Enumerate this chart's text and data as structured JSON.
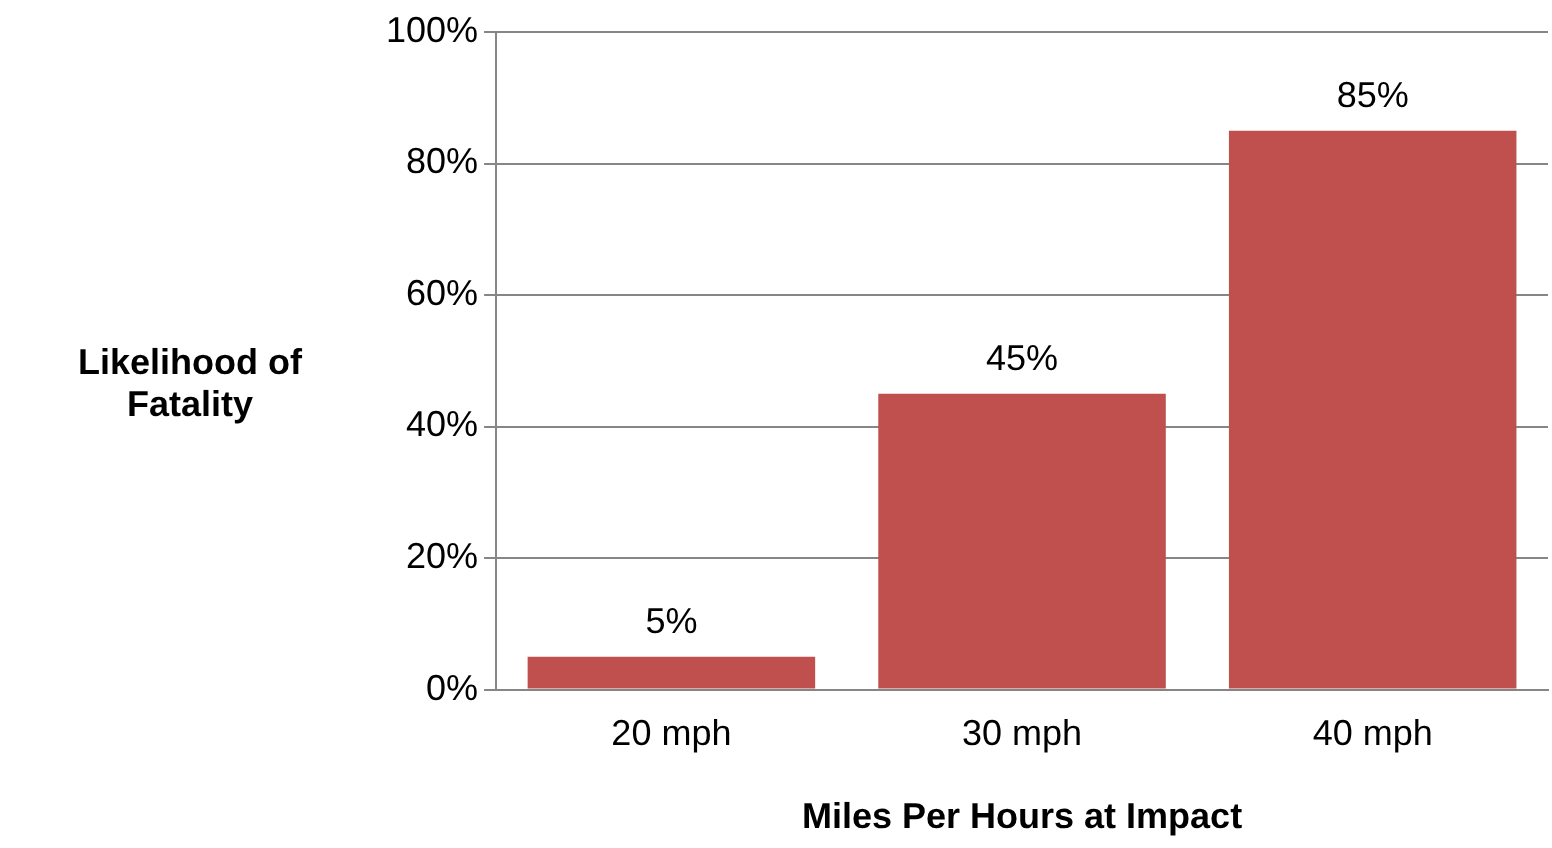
{
  "chart_data": {
    "type": "bar",
    "xlabel": "Miles Per Hours at Impact",
    "ylabel": "Likelihood of Fatality",
    "categories": [
      "20 mph",
      "30 mph",
      "40 mph"
    ],
    "values": [
      5,
      45,
      85
    ],
    "color": "#c0504d",
    "value_labels": [
      "5%",
      "45%",
      "85%"
    ],
    "ylim": [
      0,
      100
    ],
    "yticks": [
      {
        "value": 0,
        "label": "0%"
      },
      {
        "value": 20,
        "label": "20%"
      },
      {
        "value": 40,
        "label": "40%"
      },
      {
        "value": 60,
        "label": "60%"
      },
      {
        "value": 80,
        "label": "80%"
      },
      {
        "value": 100,
        "label": "100%"
      }
    ],
    "grid": "y",
    "legend": false
  }
}
